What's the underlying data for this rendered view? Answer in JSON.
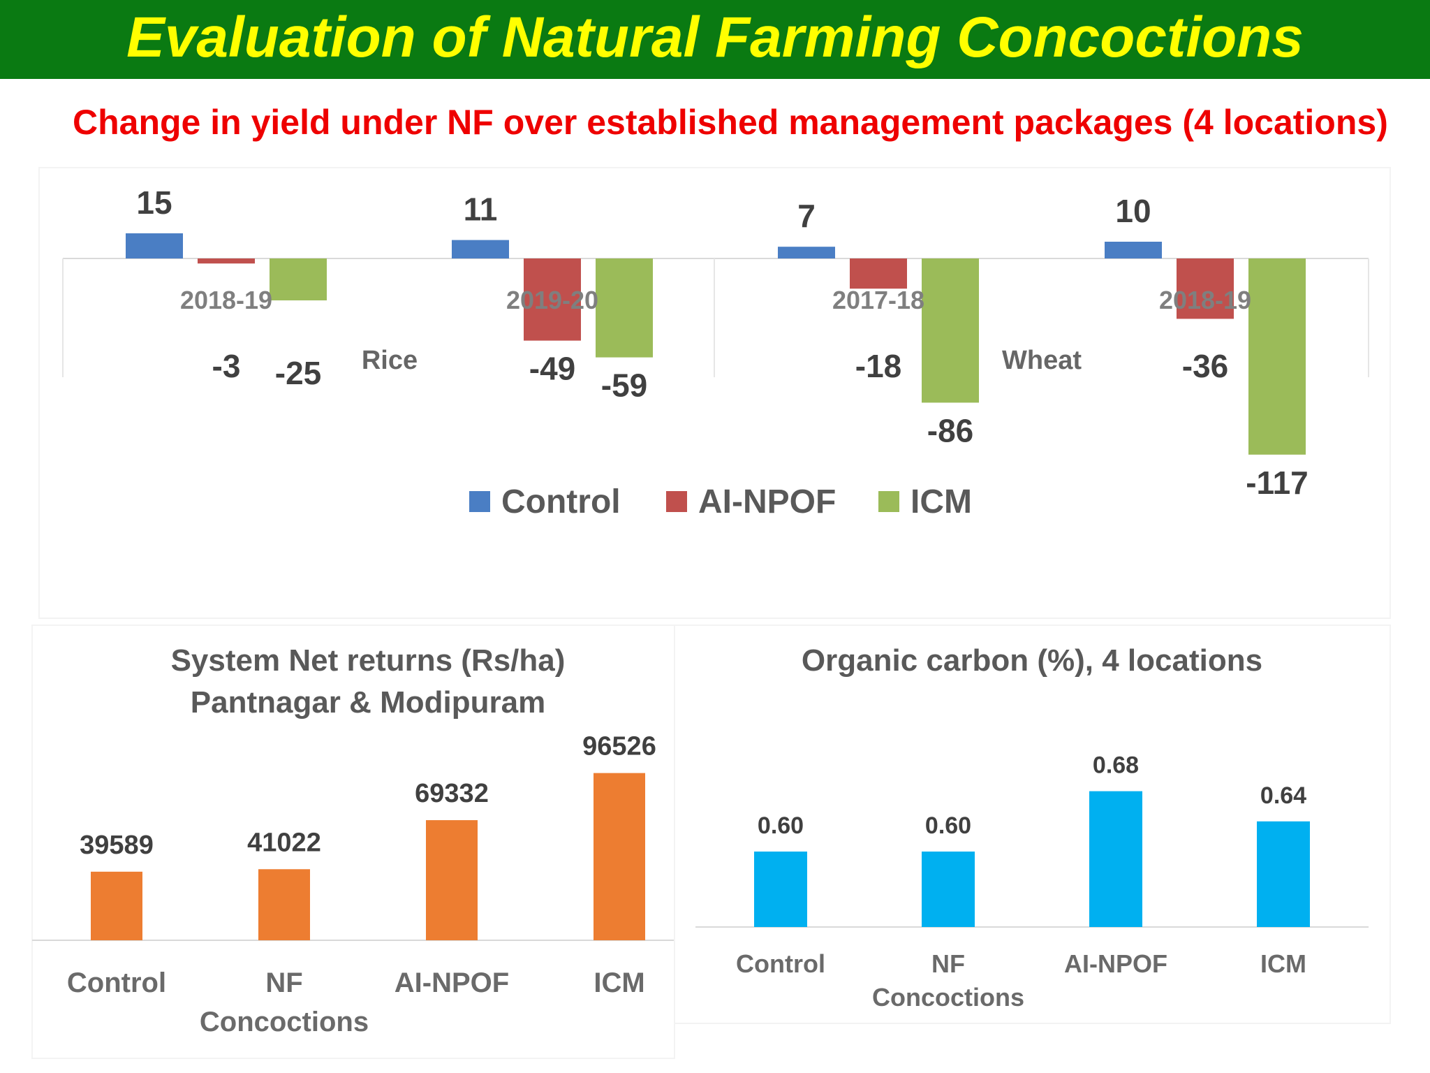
{
  "page": {
    "title": "Evaluation of Natural Farming Concoctions",
    "subtitle": "Change in yield under NF over established management packages (4 locations)"
  },
  "colors": {
    "title_bg": "#0a7a12",
    "title_text": "#ffff00",
    "subtitle_text": "#ee0000",
    "control": "#4a7ec4",
    "ai_npof": "#c0504d",
    "icm": "#9bbb59",
    "net_returns_bar": "#ed7d31",
    "organic_carbon_bar": "#00b0f0"
  },
  "chart_data": [
    {
      "type": "bar",
      "legend_position": "bottom",
      "groups": [
        {
          "period": "2018-19",
          "crop": "Rice"
        },
        {
          "period": "2019-20",
          "crop": ""
        },
        {
          "period": "2017-18",
          "crop": "Wheat"
        },
        {
          "period": "2018-19",
          "crop": ""
        }
      ],
      "series": [
        {
          "name": "Control",
          "values": [
            15,
            11,
            7,
            10
          ]
        },
        {
          "name": "AI-NPOF",
          "values": [
            -3,
            -49,
            -18,
            -36
          ]
        },
        {
          "name": "ICM",
          "values": [
            -25,
            -59,
            -86,
            -117
          ]
        }
      ],
      "data_labels": [
        [
          "15",
          "11",
          "7",
          "10"
        ],
        [
          "-3",
          "-49",
          "-18",
          "-36"
        ],
        [
          "-25",
          "-59",
          "-86",
          "-117"
        ]
      ]
    },
    {
      "type": "bar",
      "title": "System Net returns (Rs/ha)",
      "subtitle": "Pantnagar & Modipuram",
      "categories": [
        "Control",
        "NF Concoctions",
        "AI-NPOF",
        "ICM"
      ],
      "values": [
        39589,
        41022,
        69332,
        96526
      ],
      "labels": [
        "39589",
        "41022",
        "69332",
        "96526"
      ]
    },
    {
      "type": "bar",
      "title": "Organic carbon (%), 4 locations",
      "categories": [
        "Control",
        "NF Concoctions",
        "AI-NPOF",
        "ICM"
      ],
      "values": [
        0.6,
        0.6,
        0.68,
        0.64
      ],
      "labels": [
        "0.60",
        "0.60",
        "0.68",
        "0.64"
      ]
    }
  ]
}
